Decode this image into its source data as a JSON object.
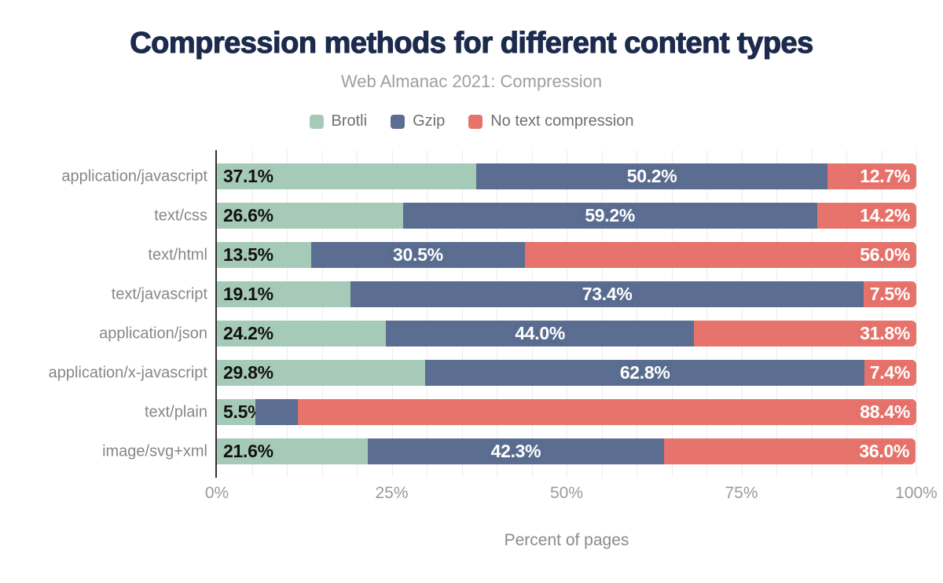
{
  "title": "Compression methods for different content types",
  "subtitle": "Web Almanac 2021: Compression",
  "legend": [
    {
      "label": "Brotli",
      "color": "#a6cab8"
    },
    {
      "label": "Gzip",
      "color": "#5b6e91"
    },
    {
      "label": "No text compression",
      "color": "#e6736c"
    }
  ],
  "colors": {
    "title_navy": "#1c2b4d",
    "brotli_green": "#a6cab8",
    "gzip_blue": "#5b6e91",
    "no_compression_red": "#e6736c",
    "axis": "#303030",
    "gridline": "#ededed"
  },
  "chart_data": {
    "type": "bar",
    "stacked": true,
    "orientation": "horizontal",
    "title": "Compression methods for different content types",
    "subtitle": "Web Almanac 2021: Compression",
    "categories": [
      "application/javascript",
      "text/css",
      "text/html",
      "text/javascript",
      "application/json",
      "application/x-javascript",
      "text/plain",
      "image/svg+xml"
    ],
    "series": [
      {
        "name": "Brotli",
        "color": "#a6cab8",
        "values": [
          37.1,
          26.6,
          13.5,
          19.1,
          24.2,
          29.8,
          5.5,
          21.6
        ],
        "labels": [
          "37.1%",
          "26.6%",
          "13.5%",
          "19.1%",
          "24.2%",
          "29.8%",
          "5.5%",
          "21.6%"
        ]
      },
      {
        "name": "Gzip",
        "color": "#5b6e91",
        "values": [
          50.2,
          59.2,
          30.5,
          73.4,
          44.0,
          62.8,
          6.1,
          42.3
        ],
        "labels": [
          "50.2%",
          "59.2%",
          "30.5%",
          "73.4%",
          "44.0%",
          "62.8%",
          "",
          "42.3%"
        ]
      },
      {
        "name": "No text compression",
        "color": "#e6736c",
        "values": [
          12.7,
          14.2,
          56.0,
          7.5,
          31.8,
          7.4,
          88.4,
          36.0
        ],
        "labels": [
          "12.7%",
          "14.2%",
          "56.0%",
          "7.5%",
          "31.8%",
          "7.4%",
          "88.4%",
          "36.0%"
        ]
      }
    ],
    "xlabel": "Percent of pages",
    "x_ticks": [
      "0%",
      "25%",
      "50%",
      "75%",
      "100%"
    ],
    "x_tick_values": [
      0,
      25,
      50,
      75,
      100
    ],
    "xlim": [
      0,
      100
    ],
    "grid_step": 5,
    "legend_position": "top",
    "grid": true
  }
}
